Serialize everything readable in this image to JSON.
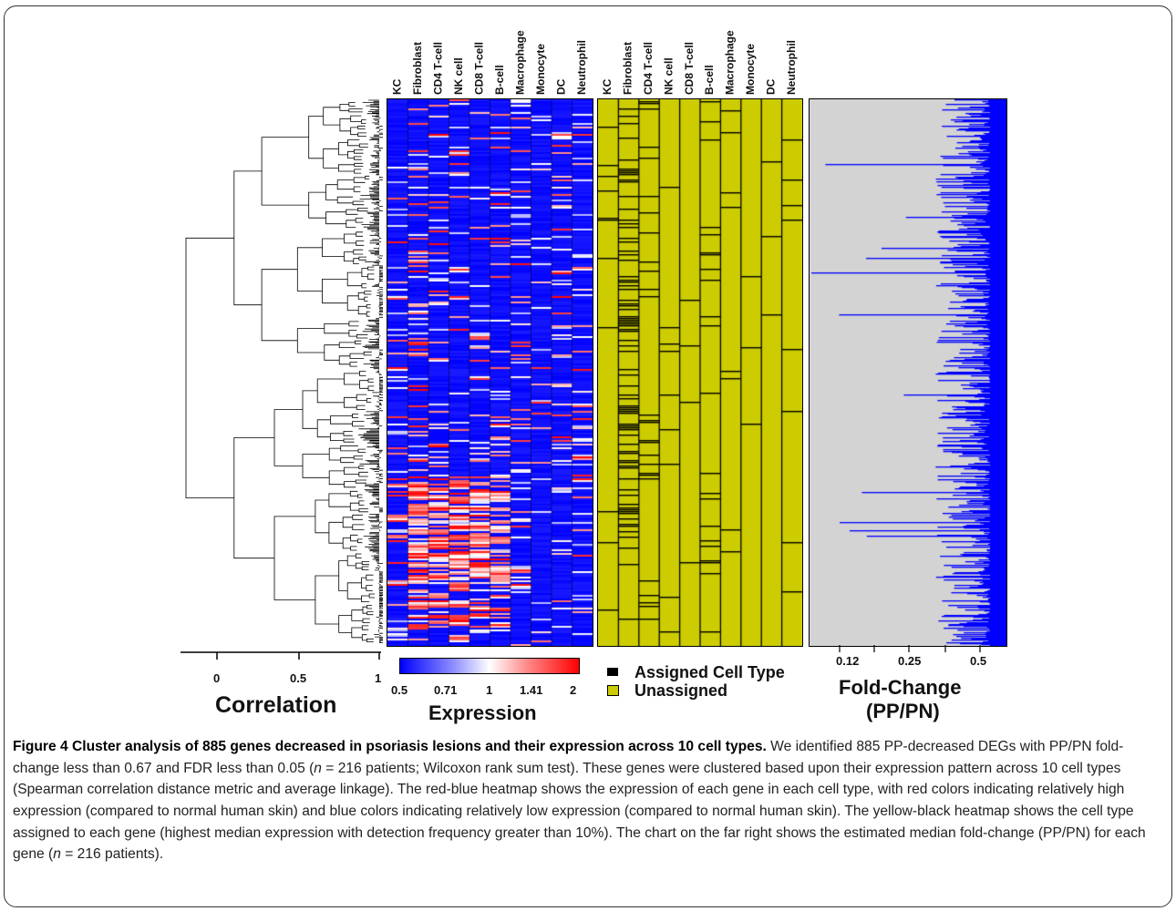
{
  "cell_types": [
    "KC",
    "Fibroblast",
    "CD4 T-cell",
    "NK cell",
    "CD8 T-cell",
    "B-cell",
    "Macrophage",
    "Monocyte",
    "DC",
    "Neutrophil"
  ],
  "correlation_axis": {
    "label": "Correlation",
    "ticks": [
      "0",
      "0.5",
      "1"
    ]
  },
  "expression_legend": {
    "label": "Expression",
    "ticks": [
      "0.5",
      "0.71",
      "1",
      "1.41",
      "2"
    ],
    "low_color": "#0000ff",
    "mid_color": "#ffffff",
    "high_color": "#ff0000"
  },
  "assignment_legend": {
    "assigned": {
      "label": "Assigned Cell Type",
      "color": "#000000"
    },
    "unassigned": {
      "label": "Unassigned",
      "color": "#cccc00"
    }
  },
  "foldchange_axis": {
    "label_line1": "Fold-Change",
    "label_line2": "(PP/PN)",
    "ticks": [
      "0.12",
      "0.25",
      "0.5"
    ],
    "bar_color": "#0000ff",
    "background": "#d3d3d3"
  },
  "caption": {
    "title": "Figure 4 Cluster analysis of 885 genes decreased in psoriasis lesions and their expression across 10 cell types.",
    "t1": " We identified 885 PP-decreased DEGs with PP/PN fold-change less than 0.67 and FDR less than 0.05 (",
    "n1": "n",
    "t2": " = 216 patients; Wilcoxon rank sum test). These genes were clustered based upon their expression pattern across 10 cell types (Spearman correlation distance metric and average linkage). The red-blue heatmap shows the expression of each gene in each cell type, with red colors indicating relatively high expression (compared to normal human skin) and blue colors indicating relatively low expression (compared to normal human skin). The yellow-black heatmap shows the cell type assigned to each gene (highest median expression with detection frequency greater than 10%). The chart on the far right shows the estimated median fold-change (PP/PN) for each gene (",
    "n2": "n",
    "t3": " = 216 patients)."
  }
}
